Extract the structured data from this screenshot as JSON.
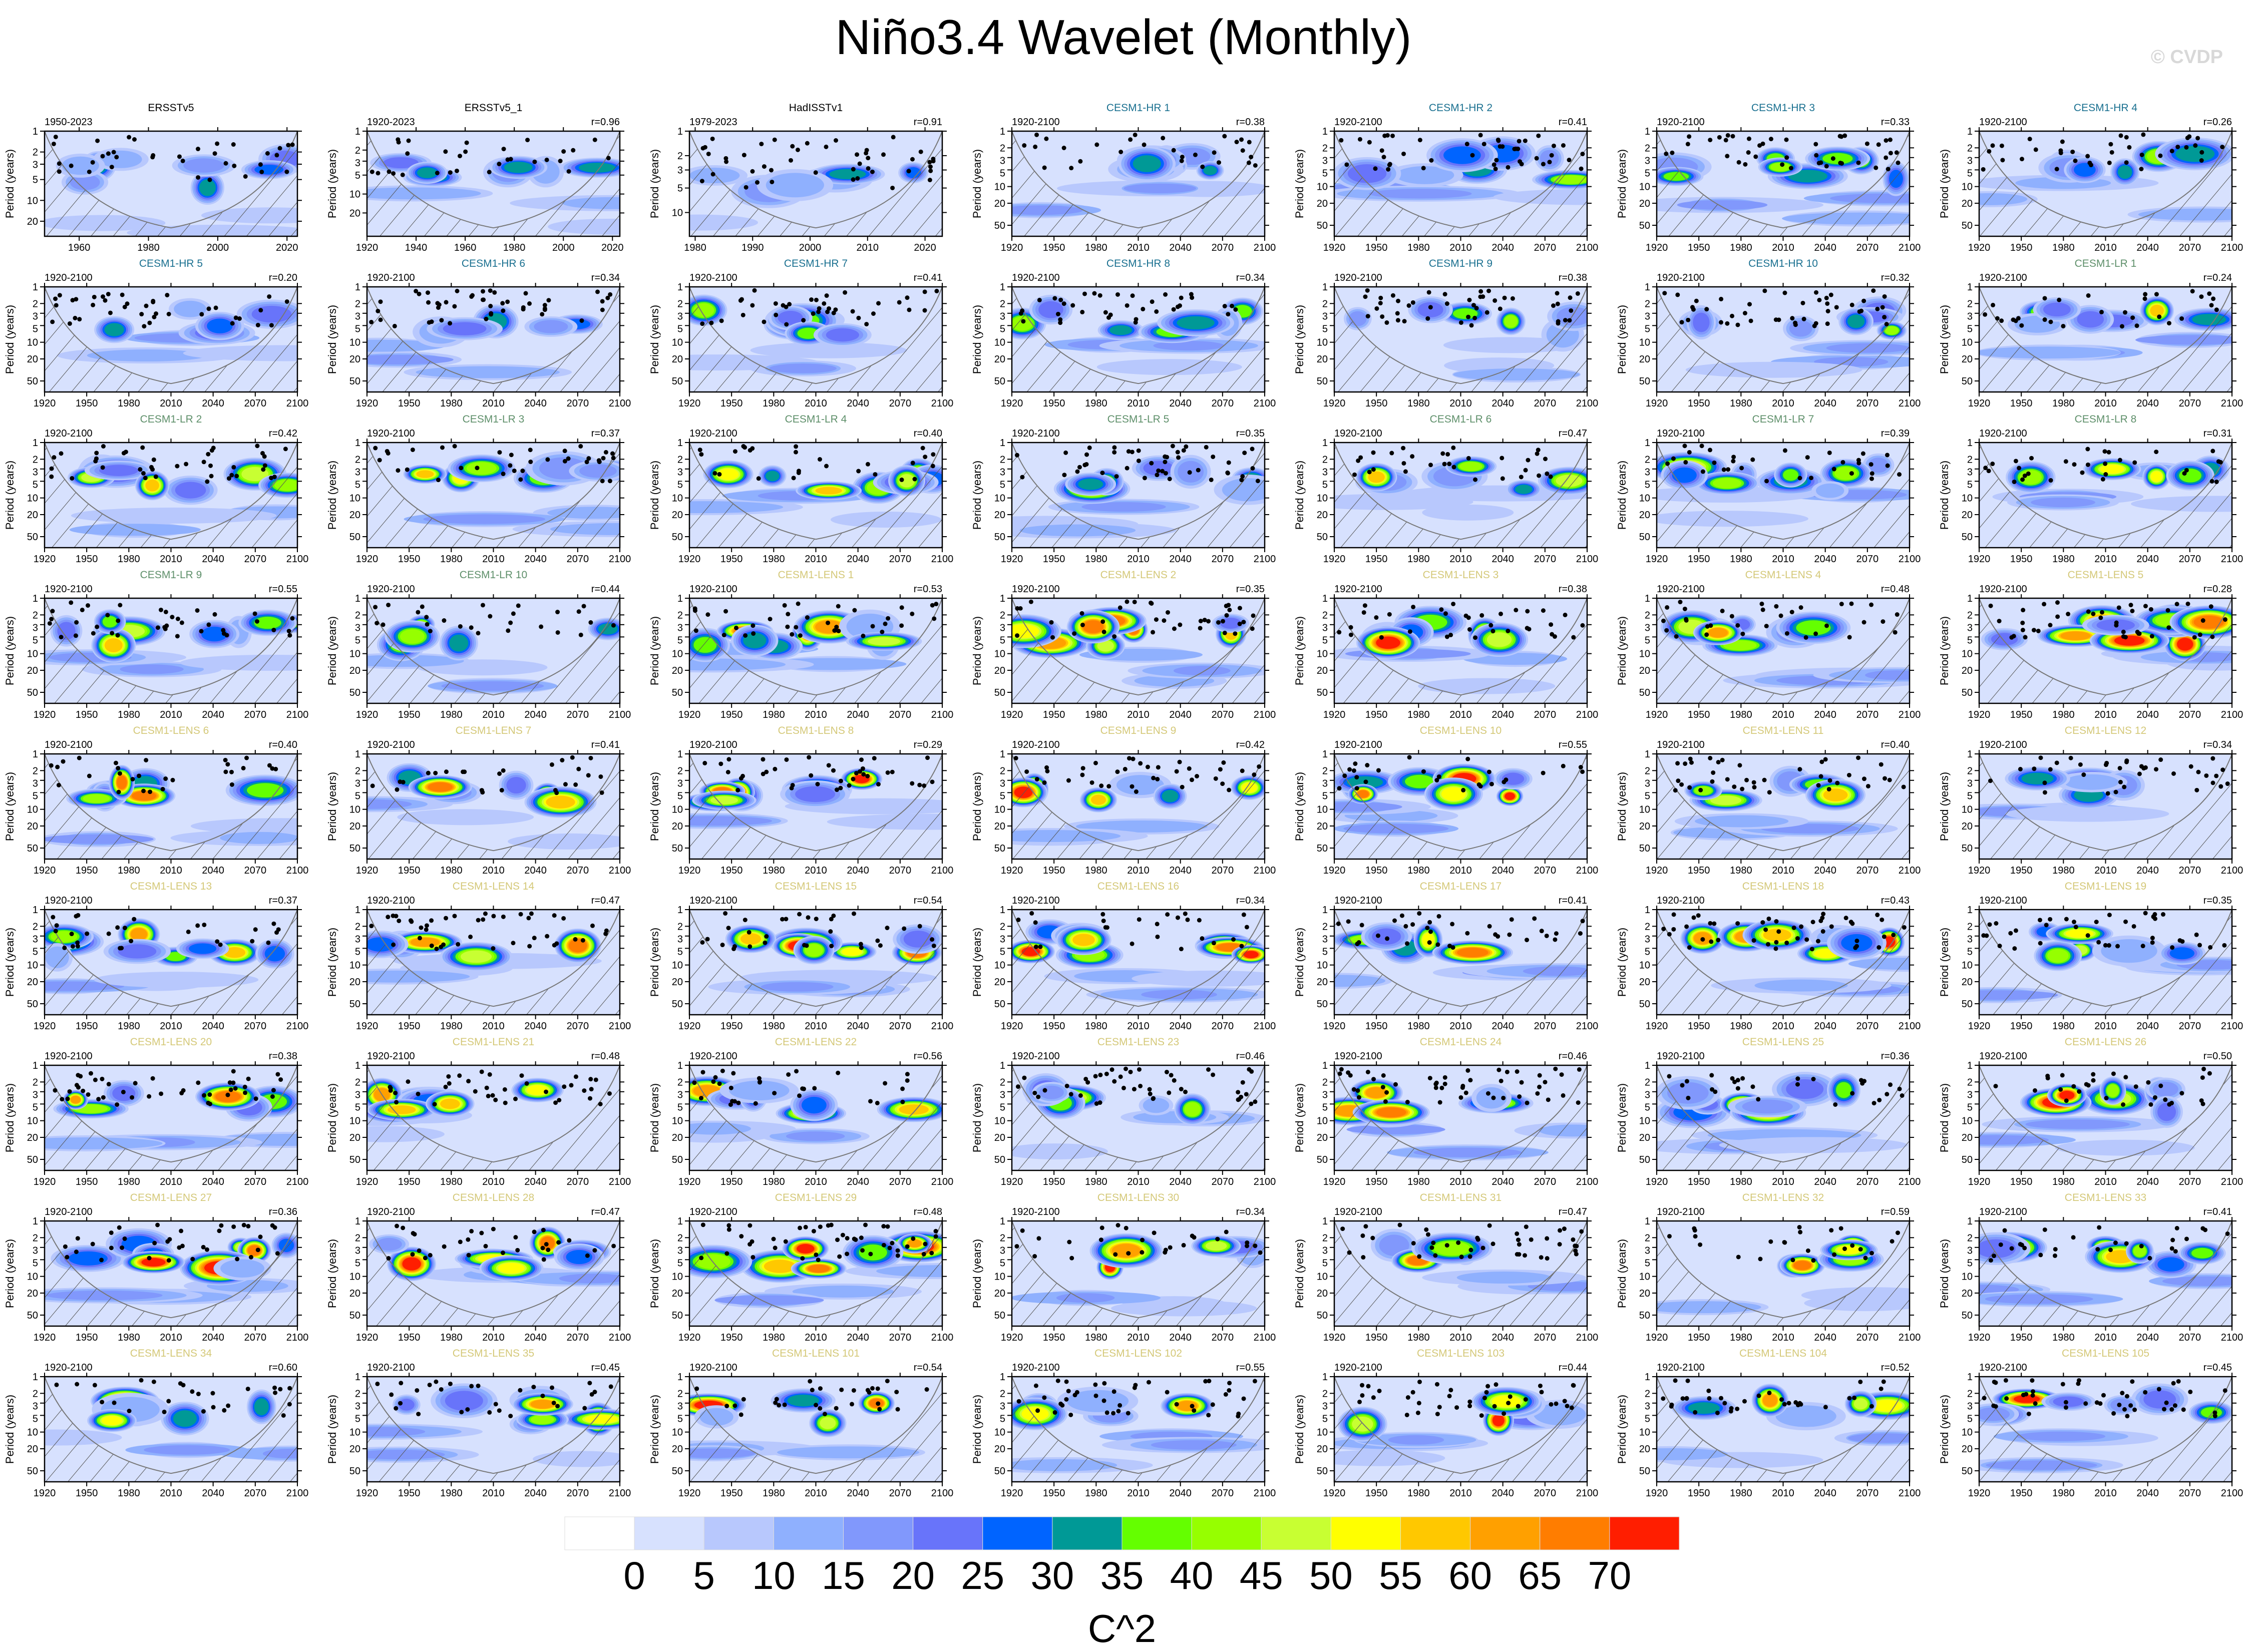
{
  "title": "Niño3.4 Wavelet (Monthly)",
  "watermark": "© CVDP",
  "ylabel": "Period (years)",
  "group_colors": {
    "obs": "#000000",
    "hr": "#1a7090",
    "lr": "#5e8f6a",
    "lens": "#d4c878"
  },
  "model_axes": {
    "x_ticks": [
      1920,
      1950,
      1980,
      2010,
      2040,
      2070,
      2100
    ],
    "x_range": [
      1920,
      2100
    ],
    "y_ticks": [
      1,
      2,
      3,
      5,
      10,
      20,
      50
    ],
    "y_max": 79
  },
  "panels": [
    {
      "label": "ERSSTv5",
      "period": "1950-2023",
      "r": "",
      "group": "obs",
      "x_range": [
        1950,
        2023
      ],
      "x_ticks": [
        1960,
        1980,
        2000,
        2020
      ],
      "y_ticks": [
        1,
        2,
        3,
        5,
        10,
        20
      ],
      "y_max": 33
    },
    {
      "label": "ERSSTv5_1",
      "period": "1920-2023",
      "r": "r=0.96",
      "group": "obs",
      "x_range": [
        1920,
        2023
      ],
      "x_ticks": [
        1920,
        1940,
        1960,
        1980,
        2000,
        2020
      ],
      "y_ticks": [
        1,
        2,
        3,
        5,
        10,
        20
      ],
      "y_max": 47
    },
    {
      "label": "HadISSTv1",
      "period": "1979-2023",
      "r": "r=0.91",
      "group": "obs",
      "x_range": [
        1979,
        2023
      ],
      "x_ticks": [
        1980,
        1990,
        2000,
        2010,
        2020
      ],
      "y_ticks": [
        1,
        2,
        3,
        5,
        10
      ],
      "y_max": 19.6
    },
    {
      "label": "CESM1-HR 1",
      "period": "1920-2100",
      "r": "r=0.38",
      "group": "hr"
    },
    {
      "label": "CESM1-HR 2",
      "period": "1920-2100",
      "r": "r=0.41",
      "group": "hr"
    },
    {
      "label": "CESM1-HR 3",
      "period": "1920-2100",
      "r": "r=0.33",
      "group": "hr"
    },
    {
      "label": "CESM1-HR 4",
      "period": "1920-2100",
      "r": "r=0.26",
      "group": "hr"
    },
    {
      "label": "CESM1-HR 5",
      "period": "1920-2100",
      "r": "r=0.20",
      "group": "hr"
    },
    {
      "label": "CESM1-HR 6",
      "period": "1920-2100",
      "r": "r=0.34",
      "group": "hr"
    },
    {
      "label": "CESM1-HR 7",
      "period": "1920-2100",
      "r": "r=0.41",
      "group": "hr"
    },
    {
      "label": "CESM1-HR 8",
      "period": "1920-2100",
      "r": "r=0.34",
      "group": "hr"
    },
    {
      "label": "CESM1-HR 9",
      "period": "1920-2100",
      "r": "r=0.38",
      "group": "hr"
    },
    {
      "label": "CESM1-HR 10",
      "period": "1920-2100",
      "r": "r=0.32",
      "group": "hr"
    },
    {
      "label": "CESM1-LR 1",
      "period": "1920-2100",
      "r": "r=0.24",
      "group": "lr"
    },
    {
      "label": "CESM1-LR 2",
      "period": "1920-2100",
      "r": "r=0.42",
      "group": "lr"
    },
    {
      "label": "CESM1-LR 3",
      "period": "1920-2100",
      "r": "r=0.37",
      "group": "lr"
    },
    {
      "label": "CESM1-LR 4",
      "period": "1920-2100",
      "r": "r=0.40",
      "group": "lr"
    },
    {
      "label": "CESM1-LR 5",
      "period": "1920-2100",
      "r": "r=0.35",
      "group": "lr"
    },
    {
      "label": "CESM1-LR 6",
      "period": "1920-2100",
      "r": "r=0.47",
      "group": "lr"
    },
    {
      "label": "CESM1-LR 7",
      "period": "1920-2100",
      "r": "r=0.39",
      "group": "lr"
    },
    {
      "label": "CESM1-LR 8",
      "period": "1920-2100",
      "r": "r=0.31",
      "group": "lr"
    },
    {
      "label": "CESM1-LR 9",
      "period": "1920-2100",
      "r": "r=0.55",
      "group": "lr"
    },
    {
      "label": "CESM1-LR 10",
      "period": "1920-2100",
      "r": "r=0.44",
      "group": "lr"
    },
    {
      "label": "CESM1-LENS 1",
      "period": "1920-2100",
      "r": "r=0.53",
      "group": "lens"
    },
    {
      "label": "CESM1-LENS 2",
      "period": "1920-2100",
      "r": "r=0.35",
      "group": "lens"
    },
    {
      "label": "CESM1-LENS 3",
      "period": "1920-2100",
      "r": "r=0.38",
      "group": "lens"
    },
    {
      "label": "CESM1-LENS 4",
      "period": "1920-2100",
      "r": "r=0.48",
      "group": "lens"
    },
    {
      "label": "CESM1-LENS 5",
      "period": "1920-2100",
      "r": "r=0.28",
      "group": "lens"
    },
    {
      "label": "CESM1-LENS 6",
      "period": "1920-2100",
      "r": "r=0.40",
      "group": "lens"
    },
    {
      "label": "CESM1-LENS 7",
      "period": "1920-2100",
      "r": "r=0.41",
      "group": "lens"
    },
    {
      "label": "CESM1-LENS 8",
      "period": "1920-2100",
      "r": "r=0.29",
      "group": "lens"
    },
    {
      "label": "CESM1-LENS 9",
      "period": "1920-2100",
      "r": "r=0.42",
      "group": "lens"
    },
    {
      "label": "CESM1-LENS 10",
      "period": "1920-2100",
      "r": "r=0.55",
      "group": "lens"
    },
    {
      "label": "CESM1-LENS 11",
      "period": "1920-2100",
      "r": "r=0.40",
      "group": "lens"
    },
    {
      "label": "CESM1-LENS 12",
      "period": "1920-2100",
      "r": "r=0.34",
      "group": "lens"
    },
    {
      "label": "CESM1-LENS 13",
      "period": "1920-2100",
      "r": "r=0.37",
      "group": "lens"
    },
    {
      "label": "CESM1-LENS 14",
      "period": "1920-2100",
      "r": "r=0.47",
      "group": "lens"
    },
    {
      "label": "CESM1-LENS 15",
      "period": "1920-2100",
      "r": "r=0.54",
      "group": "lens"
    },
    {
      "label": "CESM1-LENS 16",
      "period": "1920-2100",
      "r": "r=0.34",
      "group": "lens"
    },
    {
      "label": "CESM1-LENS 17",
      "period": "1920-2100",
      "r": "r=0.41",
      "group": "lens"
    },
    {
      "label": "CESM1-LENS 18",
      "period": "1920-2100",
      "r": "r=0.43",
      "group": "lens"
    },
    {
      "label": "CESM1-LENS 19",
      "period": "1920-2100",
      "r": "r=0.35",
      "group": "lens"
    },
    {
      "label": "CESM1-LENS 20",
      "period": "1920-2100",
      "r": "r=0.38",
      "group": "lens"
    },
    {
      "label": "CESM1-LENS 21",
      "period": "1920-2100",
      "r": "r=0.48",
      "group": "lens"
    },
    {
      "label": "CESM1-LENS 22",
      "period": "1920-2100",
      "r": "r=0.56",
      "group": "lens"
    },
    {
      "label": "CESM1-LENS 23",
      "period": "1920-2100",
      "r": "r=0.46",
      "group": "lens"
    },
    {
      "label": "CESM1-LENS 24",
      "period": "1920-2100",
      "r": "r=0.46",
      "group": "lens"
    },
    {
      "label": "CESM1-LENS 25",
      "period": "1920-2100",
      "r": "r=0.36",
      "group": "lens"
    },
    {
      "label": "CESM1-LENS 26",
      "period": "1920-2100",
      "r": "r=0.50",
      "group": "lens"
    },
    {
      "label": "CESM1-LENS 27",
      "period": "1920-2100",
      "r": "r=0.36",
      "group": "lens"
    },
    {
      "label": "CESM1-LENS 28",
      "period": "1920-2100",
      "r": "r=0.47",
      "group": "lens"
    },
    {
      "label": "CESM1-LENS 29",
      "period": "1920-2100",
      "r": "r=0.48",
      "group": "lens"
    },
    {
      "label": "CESM1-LENS 30",
      "period": "1920-2100",
      "r": "r=0.34",
      "group": "lens"
    },
    {
      "label": "CESM1-LENS 31",
      "period": "1920-2100",
      "r": "r=0.47",
      "group": "lens"
    },
    {
      "label": "CESM1-LENS 32",
      "period": "1920-2100",
      "r": "r=0.59",
      "group": "lens"
    },
    {
      "label": "CESM1-LENS 33",
      "period": "1920-2100",
      "r": "r=0.41",
      "group": "lens"
    },
    {
      "label": "CESM1-LENS 34",
      "period": "1920-2100",
      "r": "r=0.60",
      "group": "lens"
    },
    {
      "label": "CESM1-LENS 35",
      "period": "1920-2100",
      "r": "r=0.45",
      "group": "lens"
    },
    {
      "label": "CESM1-LENS 101",
      "period": "1920-2100",
      "r": "r=0.54",
      "group": "lens"
    },
    {
      "label": "CESM1-LENS 102",
      "period": "1920-2100",
      "r": "r=0.55",
      "group": "lens"
    },
    {
      "label": "CESM1-LENS 103",
      "period": "1920-2100",
      "r": "r=0.44",
      "group": "lens"
    },
    {
      "label": "CESM1-LENS 104",
      "period": "1920-2100",
      "r": "r=0.52",
      "group": "lens"
    },
    {
      "label": "CESM1-LENS 105",
      "period": "1920-2100",
      "r": "r=0.45",
      "group": "lens"
    }
  ],
  "chart_data": {
    "type": "heatmap",
    "title": "Niño3.4 Wavelet (Monthly)",
    "xlabel": "",
    "ylabel": "Period (years)",
    "y_scale": "log",
    "grid": false,
    "legend": "bottom",
    "colorbar": {
      "label": "C^2",
      "levels": [
        0,
        5,
        10,
        15,
        20,
        25,
        30,
        35,
        40,
        45,
        50,
        55,
        60,
        65,
        70
      ],
      "colors": [
        "#ffffff",
        "#d7e1fe",
        "#b8c8fd",
        "#8fb0fe",
        "#8198fc",
        "#6874fa",
        "#0064ff",
        "#009996",
        "#64ff00",
        "#96ff00",
        "#c8ff32",
        "#ffff00",
        "#ffc800",
        "#ffa000",
        "#ff7d00",
        "#ff1e00"
      ]
    }
  }
}
